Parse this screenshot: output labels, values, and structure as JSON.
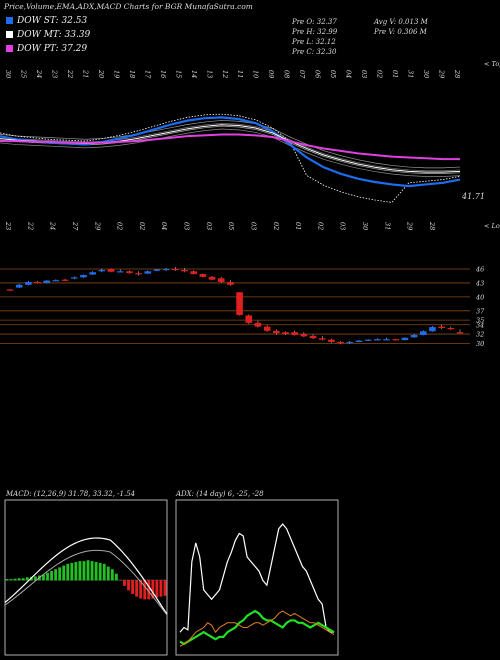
{
  "header": {
    "title": "Price,Volume,EMA,ADX,MACD Charts for BGR MunafaSutra.com",
    "legend": [
      {
        "label": "DOW ST: 32.53",
        "color": "#1e6cf0"
      },
      {
        "label": "DOW MT: 33.39",
        "color": "#ffffff"
      },
      {
        "label": "DOW PT: 37.29",
        "color": "#e040e0"
      }
    ],
    "stats_left": [
      "Pre O: 32.37",
      "Pre H: 32.99",
      "Pre L: 32.12",
      "Pre C: 32.30"
    ],
    "stats_right": [
      "Avg V: 0.013 M",
      "Pre V: 0.306 M"
    ]
  },
  "ema_panel": {
    "top_label": "< Tops",
    "bottom_label": "< Lows",
    "end_value": "41.71",
    "top_dates": [
      "30",
      "25",
      "24",
      "23",
      "22",
      "21",
      "20",
      "19",
      "18",
      "17",
      "16",
      "15",
      "14",
      "13",
      "12",
      "11",
      "10",
      "09",
      "08",
      "07",
      "06",
      "05",
      "04",
      "03",
      "02",
      "01",
      "31",
      "30",
      "29",
      "28"
    ],
    "bottom_dates": [
      "23",
      "22",
      "24",
      "27",
      "29",
      "02",
      "02",
      "04",
      "03",
      "03",
      "05",
      "03",
      "02",
      "01",
      "02",
      "03",
      "30",
      "31",
      "29",
      "28"
    ],
    "colors": {
      "price": "#ffffff",
      "ema_short": "#1e6cf0",
      "ema_long": "#e040e0"
    }
  },
  "candle_panel": {
    "price_levels": [
      "46",
      "43",
      "40",
      "37",
      "35",
      "34",
      "32",
      "30"
    ]
  },
  "chart_data": [
    {
      "type": "line",
      "title": "",
      "series": [
        {
          "name": "DOW ST",
          "values": [
            44.8,
            44.4,
            44.2,
            44.0,
            43.9,
            43.8,
            44.1,
            44.5,
            45.0,
            45.6,
            46.2,
            46.7,
            47.0,
            47.1,
            46.9,
            46.4,
            45.4,
            43.8,
            42.2,
            41.0,
            40.2,
            39.6,
            39.2,
            38.9,
            38.7,
            38.9,
            39.1,
            39.5
          ]
        },
        {
          "name": "DOW MT",
          "values": [
            44.5,
            44.3,
            44.2,
            44.1,
            44.0,
            43.9,
            44.0,
            44.2,
            44.5,
            44.9,
            45.3,
            45.7,
            46.0,
            46.2,
            46.1,
            45.8,
            45.2,
            44.2,
            43.3,
            42.5,
            41.9,
            41.4,
            41.0,
            40.7,
            40.5,
            40.4,
            40.4,
            40.5
          ]
        },
        {
          "name": "DOW PT",
          "values": [
            44.2,
            44.2,
            44.1,
            44.1,
            44.0,
            44.0,
            44.0,
            44.1,
            44.2,
            44.4,
            44.6,
            44.8,
            44.9,
            45.0,
            45.0,
            44.9,
            44.7,
            44.2,
            43.7,
            43.3,
            43.0,
            42.7,
            42.5,
            42.3,
            42.2,
            42.1,
            42.0,
            42.0
          ]
        }
      ]
    },
    {
      "type": "bar",
      "title": "",
      "series": [
        {
          "name": "candles",
          "ohlc": [
            [
              41.6,
              41.6,
              41.3,
              41.4
            ],
            [
              42.0,
              42.8,
              41.9,
              42.6
            ],
            [
              42.6,
              43.4,
              42.5,
              43.2
            ],
            [
              43.2,
              43.4,
              42.9,
              43.0
            ],
            [
              43.0,
              43.6,
              42.9,
              43.5
            ],
            [
              43.6,
              43.8,
              43.4,
              43.6
            ],
            [
              43.7,
              43.9,
              43.4,
              43.6
            ],
            [
              44.0,
              44.4,
              43.8,
              44.2
            ],
            [
              44.2,
              44.8,
              44.1,
              44.7
            ],
            [
              44.8,
              45.5,
              44.7,
              45.3
            ],
            [
              45.5,
              46.1,
              45.3,
              45.8
            ],
            [
              46.0,
              46.1,
              45.3,
              45.4
            ],
            [
              45.5,
              45.9,
              45.3,
              45.5
            ],
            [
              45.5,
              45.7,
              45.0,
              45.1
            ],
            [
              45.1,
              45.5,
              44.6,
              44.9
            ],
            [
              45.0,
              45.7,
              44.9,
              45.5
            ],
            [
              45.6,
              46.0,
              45.5,
              45.9
            ],
            [
              46.0,
              46.2,
              45.6,
              46.0
            ],
            [
              46.0,
              46.4,
              45.6,
              45.8
            ],
            [
              45.8,
              46.2,
              45.3,
              45.5
            ],
            [
              45.5,
              45.7,
              44.8,
              44.9
            ],
            [
              44.9,
              45.0,
              44.2,
              44.3
            ],
            [
              44.3,
              44.5,
              43.6,
              43.7
            ],
            [
              44.0,
              44.3,
              43.0,
              43.2
            ],
            [
              43.2,
              43.6,
              42.4,
              42.6
            ],
            [
              41.0,
              41.0,
              36.0,
              36.1
            ],
            [
              36.0,
              36.2,
              34.2,
              34.4
            ],
            [
              34.4,
              34.9,
              33.4,
              33.6
            ],
            [
              33.6,
              33.9,
              32.5,
              32.7
            ],
            [
              32.7,
              33.0,
              31.9,
              32.2
            ],
            [
              32.4,
              32.6,
              31.8,
              32.0
            ],
            [
              32.4,
              32.7,
              31.7,
              31.8
            ],
            [
              32.0,
              32.4,
              31.3,
              31.5
            ],
            [
              31.6,
              31.9,
              30.9,
              31.1
            ],
            [
              31.1,
              31.6,
              30.6,
              30.8
            ],
            [
              30.8,
              31.0,
              30.1,
              30.3
            ],
            [
              30.3,
              30.5,
              29.8,
              30.0
            ],
            [
              30.1,
              30.5,
              29.9,
              30.3
            ],
            [
              30.3,
              30.7,
              30.2,
              30.6
            ],
            [
              30.6,
              30.9,
              30.5,
              30.8
            ],
            [
              30.8,
              31.1,
              30.6,
              30.9
            ],
            [
              30.9,
              31.2,
              30.7,
              30.9
            ],
            [
              30.9,
              31.0,
              30.6,
              30.7
            ],
            [
              30.7,
              31.3,
              30.6,
              31.2
            ],
            [
              31.3,
              32.0,
              31.2,
              31.8
            ],
            [
              31.8,
              32.8,
              31.7,
              32.6
            ],
            [
              32.6,
              33.7,
              32.5,
              33.5
            ],
            [
              33.6,
              34.0,
              33.1,
              33.3
            ],
            [
              33.3,
              33.6,
              32.9,
              33.1
            ],
            [
              32.4,
              33.0,
              32.1,
              32.3
            ]
          ]
        }
      ]
    },
    {
      "type": "bar",
      "title": "",
      "header": "MACD: (12,26,9) 31.78, 33.32, -1.54",
      "series": [
        {
          "name": "histogram",
          "values": [
            0.1,
            0.1,
            0.15,
            0.2,
            0.2,
            0.3,
            0.35,
            0.4,
            0.5,
            0.6,
            0.8,
            1.0,
            1.2,
            1.4,
            1.6,
            1.8,
            1.9,
            2.0,
            2.1,
            2.1,
            2.2,
            2.1,
            2.0,
            1.9,
            1.8,
            1.5,
            1.2,
            0.7,
            0.0,
            -0.6,
            -1.1,
            -1.5,
            -1.8,
            -2.0,
            -2.1,
            -2.1,
            -2.0,
            -1.9,
            -1.8,
            -1.7
          ]
        }
      ]
    },
    {
      "type": "line",
      "title": "",
      "header": "ADX: (14 day) 6, -25, -28",
      "series": [
        {
          "name": "ADX",
          "values": [
            8,
            10,
            9,
            38,
            46,
            40,
            26,
            24,
            22,
            24,
            26,
            32,
            38,
            42,
            47,
            50,
            49,
            40,
            38,
            36,
            34,
            30,
            28,
            36,
            44,
            52,
            54,
            52,
            48,
            44,
            40,
            36,
            34,
            30,
            26,
            22,
            20,
            10,
            8,
            8
          ]
        },
        {
          "name": "+DI",
          "values": [
            4,
            3,
            4,
            5,
            6,
            7,
            8,
            7,
            6,
            5,
            6,
            6,
            8,
            9,
            10,
            12,
            13,
            15,
            16,
            17,
            16,
            14,
            13,
            13,
            12,
            11,
            10,
            12,
            13,
            13,
            12,
            12,
            11,
            10,
            11,
            12,
            11,
            10,
            9,
            8
          ]
        },
        {
          "name": "-DI",
          "values": [
            2,
            3,
            4,
            6,
            8,
            9,
            10,
            12,
            11,
            8,
            10,
            11,
            12,
            12,
            12,
            11,
            10,
            10,
            11,
            12,
            12,
            11,
            12,
            13,
            14,
            16,
            17,
            16,
            15,
            16,
            15,
            14,
            13,
            12,
            12,
            11,
            10,
            9,
            8,
            7
          ]
        }
      ]
    }
  ]
}
